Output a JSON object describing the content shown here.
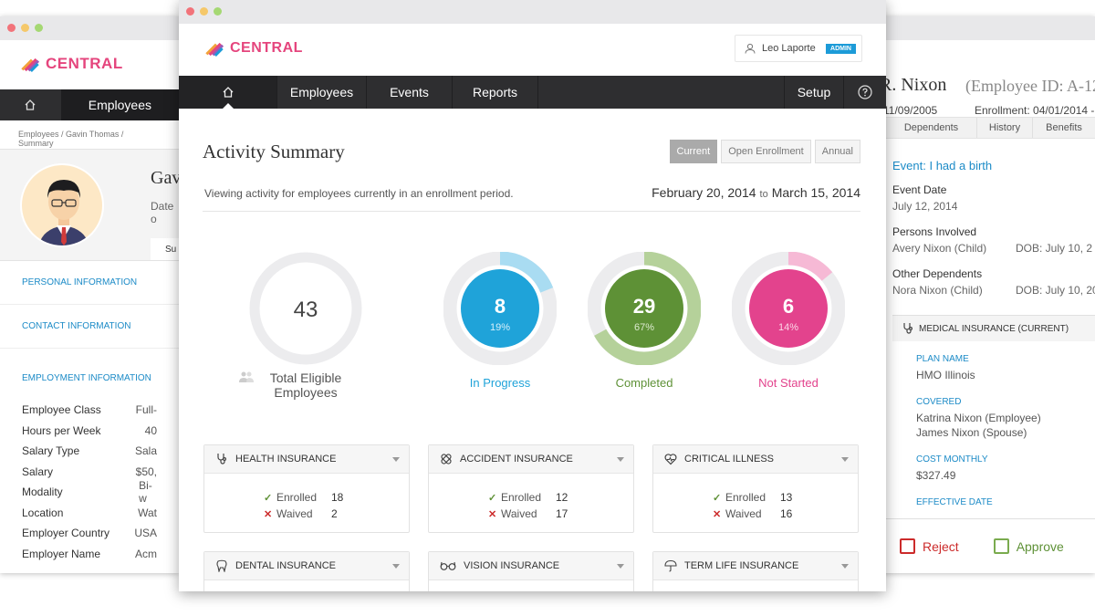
{
  "colors": {
    "in_progress": "#1fa3d9",
    "completed": "#5e9136",
    "not_started": "#e3438d",
    "accent_blue": "#1c8bc7",
    "nav_dark": "#2e2e30"
  },
  "left_window": {
    "logo": "CENTRAL",
    "nav": {
      "home_icon": "home-icon",
      "employees": "Employees"
    },
    "breadcrumb": "Employees / Gavin Thomas / Summary",
    "profile": {
      "name_partial": "Gav",
      "date_partial": "Date o",
      "tab_partial": "Su"
    },
    "sections": [
      "PERSONAL INFORMATION",
      "CONTACT INFORMATION",
      "EMPLOYMENT INFORMATION"
    ],
    "employment_fields": [
      {
        "k": "Employee Class",
        "v": "Full-"
      },
      {
        "k": "Hours per Week",
        "v": "40"
      },
      {
        "k": "Salary Type",
        "v": "Sala"
      },
      {
        "k": "Salary",
        "v": "$50,"
      },
      {
        "k": "Modality",
        "v": "Bi-w"
      },
      {
        "k": "Location",
        "v": "Wat"
      },
      {
        "k": "Employer Country",
        "v": "USA"
      },
      {
        "k": "Employer Name",
        "v": "Acm"
      }
    ]
  },
  "main_window": {
    "logo": "CENTRAL",
    "user": {
      "name": "Leo Laporte",
      "badge": "ADMIN",
      "icon": "user-icon"
    },
    "nav": {
      "employees": "Employees",
      "events": "Events",
      "reports": "Reports",
      "setup": "Setup",
      "help_icon": "help-icon"
    },
    "title": "Activity Summary",
    "segments": [
      "Current",
      "Open Enrollment",
      "Annual"
    ],
    "viewing_text": "Viewing activity for employees currently in an enrollment period.",
    "date_from": "February 20, 2014",
    "date_to_word": "to",
    "date_to": "March 15, 2014",
    "stats": {
      "total": {
        "value": "43",
        "label_line1": "Total Eligible",
        "label_line2": "Employees"
      },
      "in_progress": {
        "value": "8",
        "percent": "19%",
        "fraction": 0.19,
        "label": "In Progress"
      },
      "completed": {
        "value": "29",
        "percent": "67%",
        "fraction": 0.67,
        "label": "Completed"
      },
      "not_started": {
        "value": "6",
        "percent": "14%",
        "fraction": 0.14,
        "label": "Not Started"
      }
    },
    "cards": [
      {
        "title": "HEALTH INSURANCE",
        "icon": "stethoscope-icon",
        "enrolled_label": "Enrolled",
        "enrolled": "18",
        "waived_label": "Waived",
        "waived": "2"
      },
      {
        "title": "ACCIDENT INSURANCE",
        "icon": "bandage-icon",
        "enrolled_label": "Enrolled",
        "enrolled": "12",
        "waived_label": "Waived",
        "waived": "17"
      },
      {
        "title": "CRITICAL ILLNESS",
        "icon": "heart-pulse-icon",
        "enrolled_label": "Enrolled",
        "enrolled": "13",
        "waived_label": "Waived",
        "waived": "16"
      },
      {
        "title": "DENTAL INSURANCE",
        "icon": "tooth-icon"
      },
      {
        "title": "VISION INSURANCE",
        "icon": "glasses-icon"
      },
      {
        "title": "TERM LIFE INSURANCE",
        "icon": "umbrella-icon"
      }
    ]
  },
  "right_window": {
    "name_partial": "R. Nixon",
    "employee_id_partial": "(Employee ID: A-123",
    "dob_partial": "11/09/2005",
    "enrollment": "Enrollment: 04/01/2014 -",
    "tabs": [
      "Dependents",
      "History",
      "Benefits"
    ],
    "event_title": "Event: I had a birth",
    "event_date_label": "Event Date",
    "event_date": "July 12, 2014",
    "persons_label": "Persons Involved",
    "person": "Avery Nixon (Child)",
    "person_dob": "DOB: July 10, 2",
    "other_label": "Other Dependents",
    "other": "Nora Nixon (Child)",
    "other_dob": "DOB: July 10, 20",
    "medical": {
      "header": "MEDICAL INSURANCE (CURRENT)",
      "plan_label": "PLAN NAME",
      "plan": "HMO Illinois",
      "covered_label": "COVERED",
      "covered_1": "Katrina Nixon (Employee)",
      "covered_2": "James Nixon (Spouse)",
      "cost_label": "COST MONTHLY",
      "cost": "$327.49",
      "effective_label": "EFFECTIVE DATE"
    },
    "reject": "Reject",
    "approve": "Approve"
  }
}
